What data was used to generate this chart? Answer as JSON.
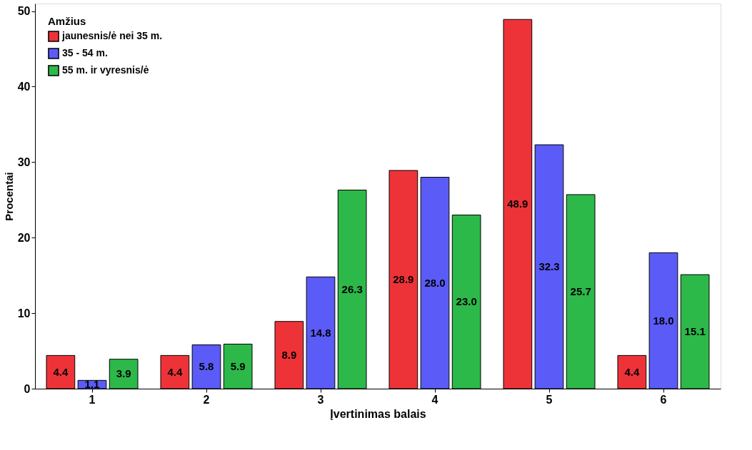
{
  "chart_data": {
    "type": "bar",
    "xlabel": "Įvertinimas balais",
    "ylabel": "Procentai",
    "legend_title": "Amžius",
    "categories": [
      "1",
      "2",
      "3",
      "4",
      "5",
      "6"
    ],
    "series": [
      {
        "name": "jaunesnis/ė nei 35 m.",
        "color": "#ee3338",
        "values": [
          4.4,
          4.4,
          8.9,
          28.9,
          48.9,
          4.4
        ],
        "value_labels": [
          "4.4",
          "4.4",
          "8.9",
          "28.9",
          "48.9",
          "4.4"
        ]
      },
      {
        "name": "35 - 54 m.",
        "color": "#5b5bf7",
        "values": [
          1.1,
          5.8,
          14.8,
          28.0,
          32.3,
          18.0
        ],
        "value_labels": [
          "1.1",
          "5.8",
          "14.8",
          "28.0",
          "32.3",
          "18.0"
        ]
      },
      {
        "name": "55 m. ir vyresnis/ė",
        "color": "#2db84a",
        "values": [
          3.9,
          5.9,
          26.3,
          23.0,
          25.7,
          15.1
        ],
        "value_labels": [
          "3.9",
          "5.9",
          "26.3",
          "23.0",
          "25.7",
          "15.1"
        ]
      }
    ],
    "ylim": [
      0,
      51
    ],
    "yticks": [
      0,
      10,
      20,
      30,
      40,
      50
    ],
    "grid": false,
    "legend": "top left"
  }
}
